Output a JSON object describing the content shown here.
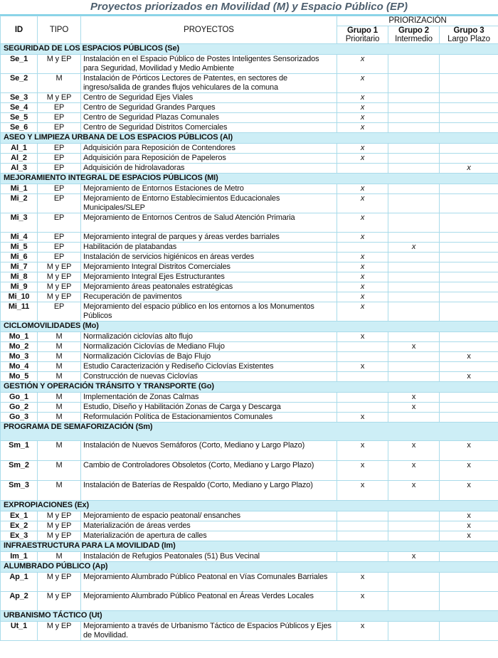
{
  "title": "Proyectos priorizados en Movilidad (M) y Espacio Público (EP)",
  "headers": {
    "id": "ID",
    "tipo": "TIPO",
    "proyectos": "PROYECTOS",
    "priorizacion": "PRIORIZACIÓN",
    "groups": [
      {
        "name": "Grupo 1",
        "sub": "Prioritario"
      },
      {
        "name": "Grupo 2",
        "sub": "Intermedio"
      },
      {
        "name": "Grupo 3",
        "sub": "Largo Plazo"
      }
    ]
  },
  "sections": [
    {
      "title": "SEGURIDAD DE LOS ESPACIOS PÚBLICOS (Se)",
      "italic_marks": true,
      "rows": [
        [
          "Se_1",
          "M y EP",
          "Instalación en el Espacio Público de Postes Inteligentes Sensorizados para Seguridad, Movilidad y Medio Ambiente",
          "x",
          "",
          ""
        ],
        [
          "Se_2",
          "M",
          "Instalación de Pórticos Lectores de Patentes, en sectores de ingreso/salida de grandes flujos vehiculares de la comuna",
          "x",
          "",
          ""
        ],
        [
          "Se_3",
          "M y EP",
          "Centro de Seguridad Ejes Viales",
          "x",
          "",
          ""
        ],
        [
          "Se_4",
          "EP",
          "Centro de Seguridad Grandes Parques",
          "x",
          "",
          ""
        ],
        [
          "Se_5",
          "EP",
          "Centro de Seguridad Plazas Comunales",
          "x",
          "",
          ""
        ],
        [
          "Se_6",
          "EP",
          "Centro de Seguridad Distritos Comerciales",
          "x",
          "",
          ""
        ]
      ]
    },
    {
      "title": "ASEO Y LIMPIEZA URBANA DE LOS ESPACIOS PÚBLICOS (Al)",
      "italic_marks": true,
      "rows": [
        [
          "Al_1",
          "EP",
          "Adquisición para Reposición de Contendores",
          "x",
          "",
          ""
        ],
        [
          "Al_2",
          "EP",
          "Adquisición para Reposición de Papeleros",
          "x",
          "",
          ""
        ],
        [
          "Al_3",
          "EP",
          "Adquisición de hidrolavadoras",
          "",
          "",
          "x"
        ]
      ]
    },
    {
      "title": "MEJORAMIENTO INTEGRAL DE ESPACIOS PÚBLICOS (MI)",
      "italic_marks": true,
      "rows": [
        [
          "Mi_1",
          "EP",
          "Mejoramiento de Entornos Estaciones de Metro",
          "x",
          "",
          ""
        ],
        [
          "Mi_2",
          "EP",
          "Mejoramiento de Entorno Establecimientos Educacionales Municipales/SLEP",
          "x",
          "",
          ""
        ],
        [
          "Mi_3",
          "EP",
          "Mejoramiento de Entornos Centros de Salud Atención Primaria",
          "x",
          "",
          ""
        ],
        [
          "Mi_4",
          "EP",
          "Mejoramiento integral de parques y áreas verdes barriales",
          "x",
          "",
          ""
        ],
        [
          "Mi_5",
          "EP",
          "Habilitación de platabandas",
          "",
          "x",
          ""
        ],
        [
          "Mi_6",
          "EP",
          "Instalación de servicios higiénicos en áreas verdes",
          "x",
          "",
          ""
        ],
        [
          "Mi_7",
          "M y EP",
          "Mejoramiento Integral Distritos Comerciales",
          "x",
          "",
          ""
        ],
        [
          "Mi_8",
          "M y EP",
          "Mejoramiento Integral Ejes Estructurantes",
          "x",
          "",
          ""
        ],
        [
          "Mi_9",
          "M y EP",
          "Mejoramiento áreas peatonales estratégicas",
          "x",
          "",
          ""
        ],
        [
          "Mi_10",
          "M y EP",
          "Recuperación de pavimentos",
          "x",
          "",
          ""
        ],
        [
          "Mi_11",
          "EP",
          "Mejoramiento del espacio público en los entornos a los Monumentos Públicos",
          "x",
          "",
          ""
        ]
      ]
    },
    {
      "title": "CICLOMOVILIDADES (Mo)",
      "italic_marks": false,
      "rows": [
        [
          "Mo_1",
          "M",
          "Normalización ciclovías alto flujo",
          "x",
          "",
          ""
        ],
        [
          "Mo_2",
          "M",
          "Normalización Ciclovías de Mediano Flujo",
          "",
          "x",
          ""
        ],
        [
          "Mo_3",
          "M",
          "Normalización Ciclovías de Bajo Flujo",
          "",
          "",
          "x"
        ],
        [
          "Mo_4",
          "M",
          "Estudio Caracterización y Rediseño Ciclovías Existentes",
          "x",
          "",
          ""
        ],
        [
          "Mo_5",
          "M",
          "Construcción de nuevas Ciclovías",
          "",
          "",
          "x"
        ]
      ]
    },
    {
      "title": "GESTIÓN Y OPERACIÓN TRÁNSITO Y TRANSPORTE (Go)",
      "italic_marks": false,
      "rows": [
        [
          "Go_1",
          "M",
          "Implementación de Zonas Calmas",
          "",
          "x",
          ""
        ],
        [
          "Go_2",
          "M",
          "Estudio, Diseño y Habilitación Zonas de Carga y Descarga",
          "",
          "x",
          ""
        ],
        [
          "Go_3",
          "M",
          "Reformulación Política de Estacionamientos Comunales",
          "x",
          "",
          ""
        ]
      ]
    },
    {
      "title": "PROGRAMA DE SEMAFORIZACIÓN (Sm)",
      "italic_marks": false,
      "tall": true,
      "rows": [
        [
          "Sm_1",
          "M",
          "Instalación de Nuevos Semáforos (Corto, Mediano y Largo Plazo)",
          "x",
          "x",
          "x"
        ],
        [
          "Sm_2",
          "M",
          "Cambio de Controladores Obsoletos (Corto, Mediano y Largo Plazo)",
          "x",
          "x",
          "x"
        ],
        [
          "Sm_3",
          "M",
          "Instalación de Baterías de Respaldo (Corto, Mediano y Largo Plazo)",
          "x",
          "x",
          "x"
        ]
      ]
    },
    {
      "title": "EXPROPIACIONES (Ex)",
      "italic_marks": false,
      "rows": [
        [
          "Ex_1",
          "M y EP",
          "Mejoramiento de espacio peatonal/ ensanches",
          "",
          "",
          "x"
        ],
        [
          "Ex_2",
          "M y EP",
          "Materialización de áreas verdes",
          "",
          "",
          "x"
        ],
        [
          "Ex_3",
          "M y EP",
          "Materialización de apertura de calles",
          "",
          "",
          "x"
        ]
      ]
    },
    {
      "title": "INFRAESTRUCTURA PARA LA MOVILIDAD (Im)",
      "italic_marks": false,
      "rows": [
        [
          "Im_1",
          "M",
          "Instalación de Refugios Peatonales (51) Bus Vecinal",
          "",
          "x",
          ""
        ]
      ]
    },
    {
      "title": "ALUMBRADO PÚBLICO (Ap)",
      "italic_marks": false,
      "rows": [
        [
          "Ap_1",
          "M y EP",
          "Mejoramiento Alumbrado Público Peatonal en Vías Comunales Barriales",
          "x",
          "",
          ""
        ],
        [
          "Ap_2",
          "M y EP",
          "Mejoramiento Alumbrado Público Peatonal en Áreas Verdes Locales",
          "x",
          "",
          ""
        ]
      ]
    },
    {
      "title": "URBANISMO TÁCTICO (Ut)",
      "italic_marks": false,
      "rows": [
        [
          "Ut_1",
          "M y EP",
          "Mejoramiento a través de Urbanismo Táctico de Espacios Públicos y Ejes de Movilidad.",
          "x",
          "",
          ""
        ]
      ]
    }
  ]
}
